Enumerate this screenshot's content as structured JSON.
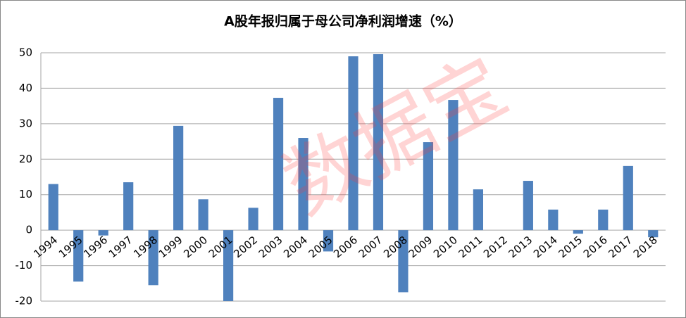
{
  "chart_data": {
    "type": "bar",
    "title": "A股年报归属于母公司净利润增速（%）",
    "watermark": "数据宝",
    "categories": [
      "1994",
      "1995",
      "1996",
      "1997",
      "1998",
      "1999",
      "2000",
      "2001",
      "2002",
      "2003",
      "2004",
      "2005",
      "2006",
      "2007",
      "2008",
      "2009",
      "2010",
      "2011",
      "2012",
      "2013",
      "2014",
      "2015",
      "2016",
      "2017",
      "2018"
    ],
    "values": [
      13,
      -14.5,
      -1.5,
      13.5,
      -15.5,
      29.4,
      8.7,
      -20,
      6.3,
      37.3,
      26,
      -6,
      49,
      49.6,
      -17.5,
      24.8,
      36.7,
      11.5,
      0,
      13.9,
      5.8,
      -1,
      5.8,
      18.1,
      -2
    ],
    "color": "#4f81bd",
    "ylim": [
      -20,
      50
    ],
    "yticks": [
      -20,
      -10,
      0,
      10,
      20,
      30,
      40,
      50
    ],
    "grid": true
  }
}
